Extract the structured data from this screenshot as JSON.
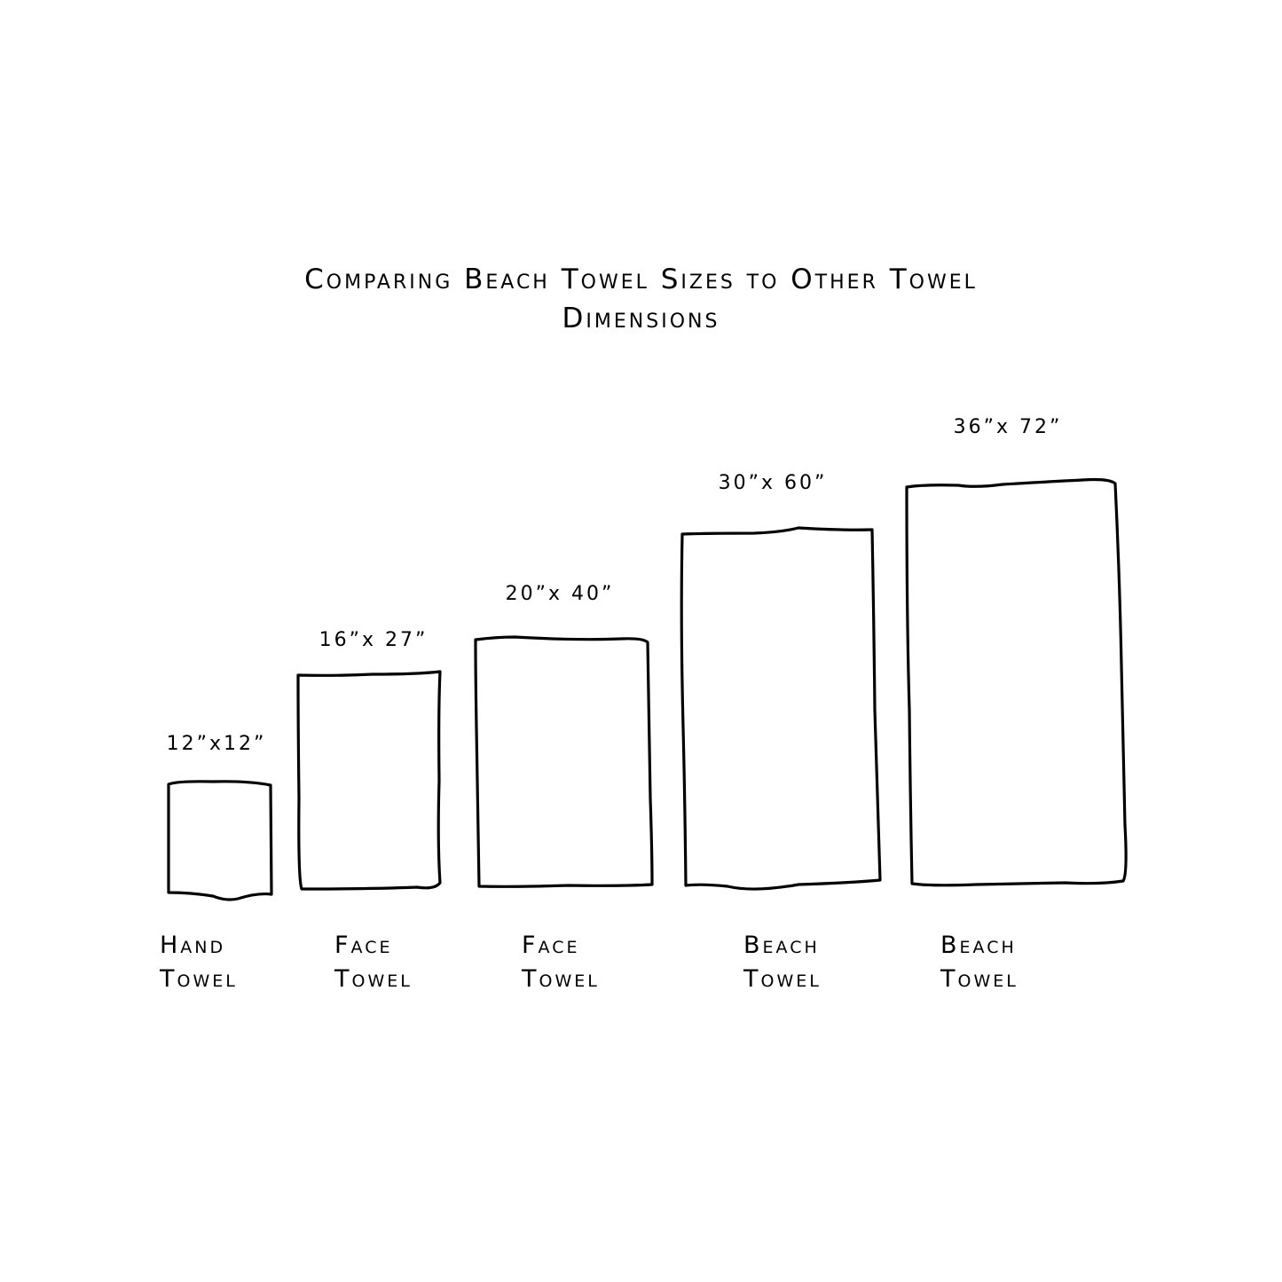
{
  "title": {
    "line1": "Comparing Beach Towel Sizes to Other Towel",
    "line2": "Dimensions"
  },
  "towels": [
    {
      "dimension": "12”x12”",
      "name_line1": "Hand",
      "name_line2": "Towel",
      "width_in": 12,
      "length_in": 12
    },
    {
      "dimension": "16”x 27”",
      "name_line1": "Face",
      "name_line2": "Towel",
      "width_in": 16,
      "length_in": 27
    },
    {
      "dimension": "20”x 40”",
      "name_line1": "Face",
      "name_line2": "Towel",
      "width_in": 20,
      "length_in": 40
    },
    {
      "dimension": "30”x 60”",
      "name_line1": "Beach",
      "name_line2": "Towel",
      "width_in": 30,
      "length_in": 60
    },
    {
      "dimension": "36”x 72”",
      "name_line1": "Beach",
      "name_line2": "Towel",
      "width_in": 36,
      "length_in": 72
    }
  ],
  "colors": {
    "stroke": "#000000",
    "background": "#ffffff"
  }
}
